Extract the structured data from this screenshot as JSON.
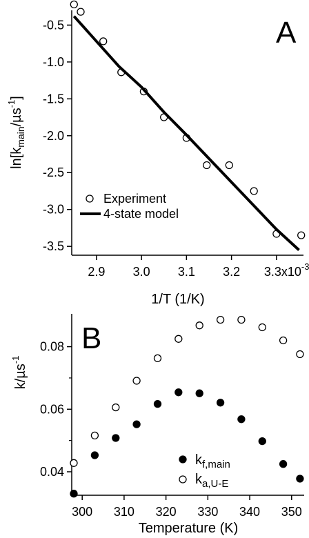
{
  "chart_data": [
    {
      "type": "scatter",
      "panel_label": "A",
      "xlabel": "1/T (1/K)",
      "ylabel": "ln[k_main/µs⁻¹]",
      "ylabel_parts": {
        "base": "ln[k",
        "sub": "main",
        "mid": "/µs",
        "sup": "-1",
        "end": "]"
      },
      "xlim": [
        2.845,
        3.36
      ],
      "ylim": [
        -3.62,
        -0.3
      ],
      "xticks": [
        {
          "value": 2.9,
          "label": "2.9"
        },
        {
          "value": 3.0,
          "label": "3.0"
        },
        {
          "value": 3.1,
          "label": "3.1"
        },
        {
          "value": 3.2,
          "label": "3.2"
        },
        {
          "value": 3.3,
          "label": "3.3x10"
        }
      ],
      "x_exponent": "-3",
      "yticks": [
        {
          "value": -0.5,
          "label": "-0.5"
        },
        {
          "value": -1.0,
          "label": "-1.0"
        },
        {
          "value": -1.5,
          "label": "-1.5"
        },
        {
          "value": -2.0,
          "label": "-2.0"
        },
        {
          "value": -2.5,
          "label": "-2.5"
        },
        {
          "value": -3.0,
          "label": "-3.0"
        },
        {
          "value": -3.5,
          "label": "-3.5"
        }
      ],
      "grid": false,
      "legend_position": "bottom-left",
      "series": [
        {
          "name": "Experiment",
          "marker": "open-circle",
          "x": [
            2.85,
            2.865,
            2.915,
            2.955,
            3.005,
            3.05,
            3.1,
            3.145,
            3.195,
            3.25,
            3.3,
            3.355
          ],
          "y": [
            -0.22,
            -0.32,
            -0.72,
            -1.14,
            -1.4,
            -1.75,
            -2.03,
            -2.4,
            -2.4,
            -2.75,
            -3.33,
            -3.35
          ]
        },
        {
          "name": "4-state model",
          "marker": "line",
          "x": [
            2.85,
            2.95,
            3.0,
            3.05,
            3.1,
            3.2,
            3.3,
            3.35
          ],
          "y": [
            -0.38,
            -1.06,
            -1.34,
            -1.68,
            -1.99,
            -2.63,
            -3.27,
            -3.55
          ]
        }
      ]
    },
    {
      "type": "scatter",
      "panel_label": "B",
      "xlabel": "Temperature (K)",
      "ylabel": "k/µs⁻¹",
      "ylabel_parts": {
        "base": "k/µs",
        "sup": "-1"
      },
      "xlim": [
        297.5,
        353
      ],
      "ylim": [
        0.0325,
        0.0905
      ],
      "xticks": [
        {
          "value": 300,
          "label": "300"
        },
        {
          "value": 310,
          "label": "310"
        },
        {
          "value": 320,
          "label": "320"
        },
        {
          "value": 330,
          "label": "330"
        },
        {
          "value": 340,
          "label": "340"
        },
        {
          "value": 350,
          "label": "350"
        }
      ],
      "yticks": [
        {
          "value": 0.04,
          "label": "0.04"
        },
        {
          "value": 0.06,
          "label": "0.06"
        },
        {
          "value": 0.08,
          "label": "0.08"
        }
      ],
      "y_minor_ticks": [
        0.05,
        0.07
      ],
      "grid": false,
      "legend_position": "bottom-right",
      "series": [
        {
          "name": "k_f,main",
          "name_parts": {
            "base": "k",
            "sub": "f,main"
          },
          "marker": "filled-circle",
          "x": [
            298,
            303,
            308,
            313,
            318,
            323,
            328,
            333,
            338,
            343,
            348,
            352
          ],
          "y": [
            0.033,
            0.0453,
            0.0508,
            0.0552,
            0.0617,
            0.0654,
            0.0651,
            0.0621,
            0.0568,
            0.0498,
            0.0425,
            0.0378
          ]
        },
        {
          "name": "k_a,U-E",
          "name_parts": {
            "base": "k",
            "sub": "a,U-E"
          },
          "marker": "open-circle",
          "x": [
            298,
            303,
            308,
            313,
            318,
            323,
            328,
            333,
            338,
            343,
            348,
            352
          ],
          "y": [
            0.0428,
            0.0516,
            0.0606,
            0.0691,
            0.0763,
            0.0825,
            0.0868,
            0.0886,
            0.0886,
            0.0862,
            0.082,
            0.0776
          ]
        }
      ]
    }
  ]
}
